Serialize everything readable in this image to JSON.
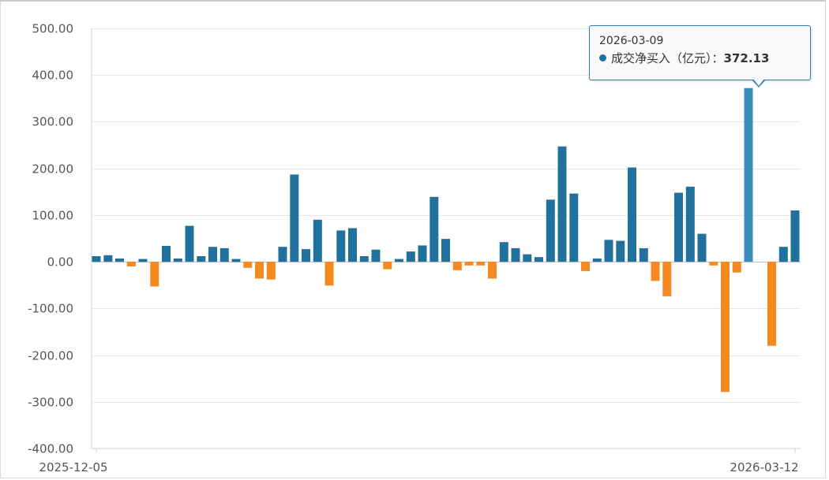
{
  "chart_data": {
    "type": "bar",
    "series_label": "成交净买入（亿元）",
    "x_tick_labels": [
      "2025-12-05",
      "2026-03-12"
    ],
    "ylim": [
      -400,
      500
    ],
    "yticks": [
      500,
      400,
      300,
      200,
      100,
      0,
      -100,
      -200,
      -300,
      -400
    ],
    "ytick_labels": [
      "500.00",
      "400.00",
      "300.00",
      "200.00",
      "100.00",
      "0.00",
      "-100.00",
      "-200.00",
      "-300.00",
      "-400.00"
    ],
    "grid": true,
    "positive_color": "#21719d",
    "negative_color": "#f5881f",
    "highlight_color": "#3a8cba",
    "highlight_index": 56,
    "values": [
      12,
      14,
      7,
      -10,
      6,
      -53,
      34,
      7,
      77,
      12,
      32,
      29,
      6,
      -13,
      -36,
      -38,
      32,
      187,
      27,
      90,
      -51,
      67,
      72,
      12,
      26,
      -16,
      6,
      22,
      35,
      139,
      49,
      -18,
      -8,
      -8,
      -36,
      42,
      29,
      16,
      10,
      133,
      247,
      146,
      -20,
      7,
      47,
      45,
      202,
      29,
      -41,
      -74,
      148,
      161,
      60,
      -8,
      -279,
      -23,
      372.13,
      0,
      -180,
      32,
      110
    ]
  },
  "tooltip": {
    "date": "2026-03-09",
    "label": "成交净买入（亿元）：",
    "value": "372.13"
  }
}
